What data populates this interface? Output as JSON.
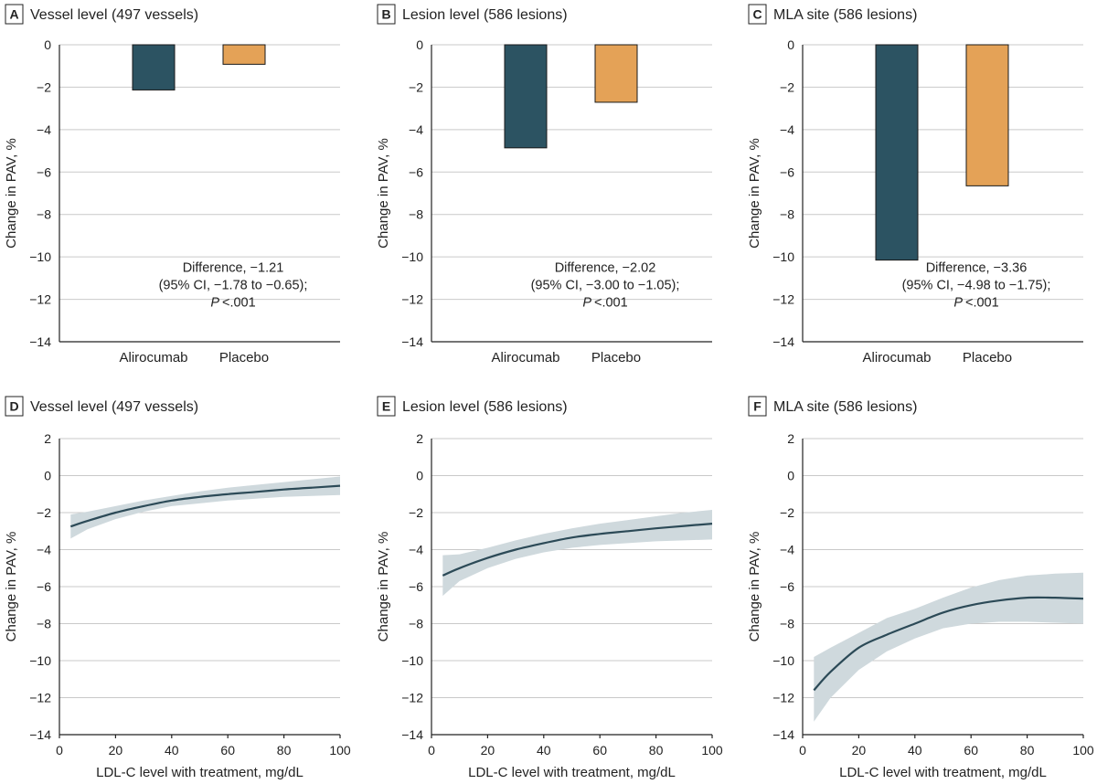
{
  "colors": {
    "alirocumab": "#2c5362",
    "placebo": "#e4a257",
    "line": "#2c4a57",
    "ci_band": "#cfd9dd"
  },
  "chart_data": [
    {
      "panel": "A",
      "type": "bar",
      "title": "Vessel level (497 vessels)",
      "ylabel": "Change in PAV, %",
      "xlabel": "",
      "ylim": [
        -14,
        0
      ],
      "yticks": [
        0,
        -2,
        -4,
        -6,
        -8,
        -10,
        -12,
        -14
      ],
      "ytick_labels": [
        "0",
        "−2",
        "−4",
        "−6",
        "−8",
        "−10",
        "−12",
        "−14"
      ],
      "categories": [
        "Alirocumab",
        "Placebo"
      ],
      "values": [
        -2.13,
        -0.92
      ],
      "annotation": {
        "line1": "Difference, −1.21",
        "line2": "(95% CI, −1.78 to −0.65);",
        "p_label": "P",
        "p_value": "<.001"
      }
    },
    {
      "panel": "B",
      "type": "bar",
      "title": "Lesion level (586 lesions)",
      "ylabel": "Change in PAV, %",
      "xlabel": "",
      "ylim": [
        -14,
        0
      ],
      "yticks": [
        0,
        -2,
        -4,
        -6,
        -8,
        -10,
        -12,
        -14
      ],
      "ytick_labels": [
        "0",
        "−2",
        "−4",
        "−6",
        "−8",
        "−10",
        "−12",
        "−14"
      ],
      "categories": [
        "Alirocumab",
        "Placebo"
      ],
      "values": [
        -4.86,
        -2.71
      ],
      "annotation": {
        "line1": "Difference, −2.02",
        "line2": "(95% CI, −3.00 to −1.05);",
        "p_label": "P",
        "p_value": "<.001"
      }
    },
    {
      "panel": "C",
      "type": "bar",
      "title": "MLA site (586 lesions)",
      "ylabel": "Change in PAV, %",
      "xlabel": "",
      "ylim": [
        -14,
        0
      ],
      "yticks": [
        0,
        -2,
        -4,
        -6,
        -8,
        -10,
        -12,
        -14
      ],
      "ytick_labels": [
        "0",
        "−2",
        "−4",
        "−6",
        "−8",
        "−10",
        "−12",
        "−14"
      ],
      "categories": [
        "Alirocumab",
        "Placebo"
      ],
      "values": [
        -10.15,
        -6.65
      ],
      "annotation": {
        "line1": "Difference, −3.36",
        "line2": "(95% CI, −4.98 to −1.75);",
        "p_label": "P",
        "p_value": "<.001"
      }
    },
    {
      "panel": "D",
      "type": "line",
      "title": "Vessel level (497 vessels)",
      "ylabel": "Change in PAV, %",
      "xlabel": "LDL-C level with treatment, mg/dL",
      "xlim": [
        0,
        100
      ],
      "ylim": [
        -14,
        2
      ],
      "xticks": [
        0,
        20,
        40,
        60,
        80,
        100
      ],
      "xtick_labels": [
        "0",
        "20",
        "40",
        "60",
        "80",
        "100"
      ],
      "yticks": [
        2,
        0,
        -2,
        -4,
        -6,
        -8,
        -10,
        -12,
        -14
      ],
      "ytick_labels": [
        "2",
        "0",
        "−2",
        "−4",
        "−6",
        "−8",
        "−10",
        "−12",
        "−14"
      ],
      "x": [
        4,
        10,
        20,
        30,
        40,
        50,
        60,
        70,
        80,
        90,
        100
      ],
      "y": [
        -2.75,
        -2.45,
        -2.0,
        -1.65,
        -1.35,
        -1.15,
        -1.0,
        -0.88,
        -0.75,
        -0.65,
        -0.55
      ],
      "lower": [
        -3.4,
        -2.9,
        -2.35,
        -1.95,
        -1.65,
        -1.5,
        -1.35,
        -1.25,
        -1.15,
        -1.1,
        -1.05
      ],
      "upper": [
        -2.1,
        -1.95,
        -1.65,
        -1.35,
        -1.1,
        -0.85,
        -0.65,
        -0.5,
        -0.35,
        -0.2,
        -0.05
      ]
    },
    {
      "panel": "E",
      "type": "line",
      "title": "Lesion level (586 lesions)",
      "ylabel": "Change in PAV, %",
      "xlabel": "LDL-C level with treatment, mg/dL",
      "xlim": [
        0,
        100
      ],
      "ylim": [
        -14,
        2
      ],
      "xticks": [
        0,
        20,
        40,
        60,
        80,
        100
      ],
      "xtick_labels": [
        "0",
        "20",
        "40",
        "60",
        "80",
        "100"
      ],
      "yticks": [
        2,
        0,
        -2,
        -4,
        -6,
        -8,
        -10,
        -12,
        -14
      ],
      "ytick_labels": [
        "2",
        "0",
        "−2",
        "−4",
        "−6",
        "−8",
        "−10",
        "−12",
        "−14"
      ],
      "x": [
        4,
        10,
        20,
        30,
        40,
        50,
        60,
        70,
        80,
        90,
        100
      ],
      "y": [
        -5.4,
        -5.0,
        -4.45,
        -4.0,
        -3.65,
        -3.35,
        -3.15,
        -3.0,
        -2.85,
        -2.72,
        -2.6
      ],
      "lower": [
        -6.5,
        -5.7,
        -5.0,
        -4.5,
        -4.15,
        -3.9,
        -3.75,
        -3.65,
        -3.55,
        -3.5,
        -3.45
      ],
      "upper": [
        -4.3,
        -4.25,
        -3.9,
        -3.5,
        -3.15,
        -2.85,
        -2.6,
        -2.4,
        -2.2,
        -2.0,
        -1.85
      ]
    },
    {
      "panel": "F",
      "type": "line",
      "title": "MLA site (586 lesions)",
      "ylabel": "Change in PAV, %",
      "xlabel": "LDL-C level with treatment, mg/dL",
      "xlim": [
        0,
        100
      ],
      "ylim": [
        -14,
        2
      ],
      "xticks": [
        0,
        20,
        40,
        60,
        80,
        100
      ],
      "xtick_labels": [
        "0",
        "20",
        "40",
        "60",
        "80",
        "100"
      ],
      "yticks": [
        2,
        0,
        -2,
        -4,
        -6,
        -8,
        -10,
        -12,
        -14
      ],
      "ytick_labels": [
        "2",
        "0",
        "−2",
        "−4",
        "−6",
        "−8",
        "−10",
        "−12",
        "−14"
      ],
      "x": [
        4,
        10,
        20,
        30,
        40,
        50,
        60,
        70,
        80,
        90,
        100
      ],
      "y": [
        -11.6,
        -10.6,
        -9.3,
        -8.6,
        -8.0,
        -7.4,
        -7.0,
        -6.75,
        -6.6,
        -6.6,
        -6.65
      ],
      "lower": [
        -13.3,
        -12.0,
        -10.5,
        -9.5,
        -8.8,
        -8.25,
        -8.0,
        -7.9,
        -7.9,
        -7.95,
        -8.0
      ],
      "upper": [
        -9.8,
        -9.3,
        -8.5,
        -7.7,
        -7.2,
        -6.6,
        -6.05,
        -5.65,
        -5.4,
        -5.3,
        -5.25
      ]
    }
  ]
}
